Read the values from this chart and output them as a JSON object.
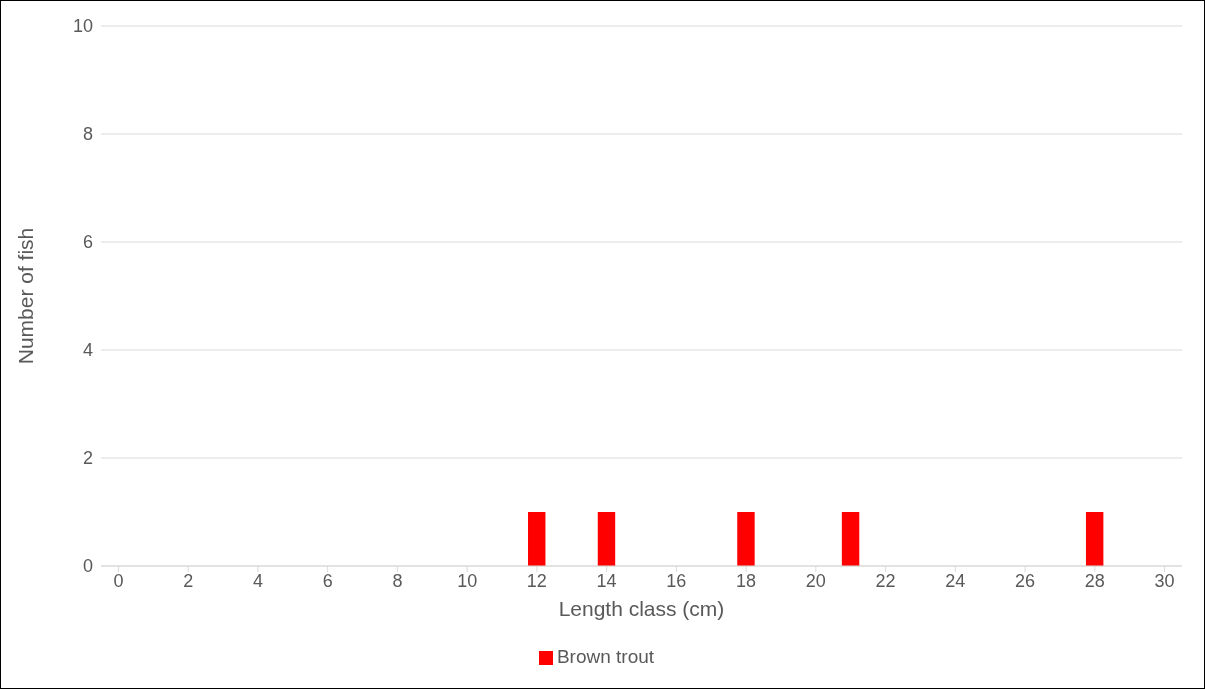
{
  "chart_data": {
    "type": "bar",
    "xlabel": "Length class (cm)",
    "ylabel": "Number of fish",
    "x": [
      12,
      14,
      18,
      21,
      28
    ],
    "series": [
      {
        "name": "Brown trout",
        "color": "#ff0000",
        "values": [
          1,
          1,
          1,
          1,
          1
        ]
      }
    ],
    "xlim": [
      -0.5,
      30.5
    ],
    "xticks": [
      0,
      2,
      4,
      6,
      8,
      10,
      12,
      14,
      16,
      18,
      20,
      22,
      24,
      26,
      28,
      30
    ],
    "ylim": [
      0,
      10
    ],
    "yticks": [
      0,
      2,
      4,
      6,
      8,
      10
    ],
    "grid": "y",
    "legend": "bottom"
  }
}
